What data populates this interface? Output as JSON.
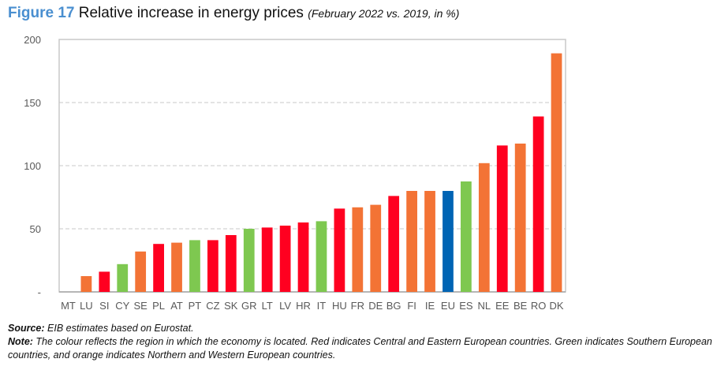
{
  "title": {
    "figure": "Figure 17",
    "main": "Relative increase in energy prices",
    "subtitle": "(February 2022 vs. 2019, in %)"
  },
  "chart_data": {
    "type": "bar",
    "title": "Relative increase in energy prices",
    "subtitle": "(February 2022 vs. 2019, in %)",
    "categories": [
      "MT",
      "LU",
      "SI",
      "CY",
      "SE",
      "PL",
      "AT",
      "PT",
      "CZ",
      "SK",
      "GR",
      "LT",
      "LV",
      "HR",
      "IT",
      "HU",
      "FR",
      "DE",
      "BG",
      "FI",
      "IE",
      "EU",
      "ES",
      "NL",
      "EE",
      "BE",
      "RO",
      "DK"
    ],
    "values": [
      0,
      12.5,
      16,
      22,
      32,
      38,
      39,
      41,
      41,
      45,
      50,
      51,
      52.5,
      55,
      56,
      66,
      67,
      69,
      76,
      80,
      80,
      80,
      87.5,
      102,
      116,
      117.5,
      139,
      189
    ],
    "regions": [
      "Southern",
      "Northern and Western",
      "Central and Eastern",
      "Southern",
      "Northern and Western",
      "Central and Eastern",
      "Northern and Western",
      "Southern",
      "Central and Eastern",
      "Central and Eastern",
      "Southern",
      "Central and Eastern",
      "Central and Eastern",
      "Central and Eastern",
      "Southern",
      "Central and Eastern",
      "Northern and Western",
      "Northern and Western",
      "Central and Eastern",
      "Northern and Western",
      "Northern and Western",
      "EU",
      "Southern",
      "Northern and Western",
      "Central and Eastern",
      "Northern and Western",
      "Central and Eastern",
      "Northern and Western"
    ],
    "colors": {
      "Central and Eastern": "#ff0020",
      "Southern": "#7ec850",
      "Northern and Western": "#f37335",
      "EU": "#0064b4"
    },
    "yticks": [
      "-",
      "50",
      "100",
      "150",
      "200"
    ],
    "ylim": [
      0,
      200
    ],
    "grid": true,
    "xlabel": "",
    "ylabel": ""
  },
  "notes": {
    "source_label": "Source:",
    "source_text": " EIB estimates based on Eurostat.",
    "note_label": "Note:",
    "note_text": " The colour reflects the region in which the economy is located. Red indicates Central and Eastern European countries. Green indicates Southern European countries, and orange indicates Northern and Western European countries."
  }
}
